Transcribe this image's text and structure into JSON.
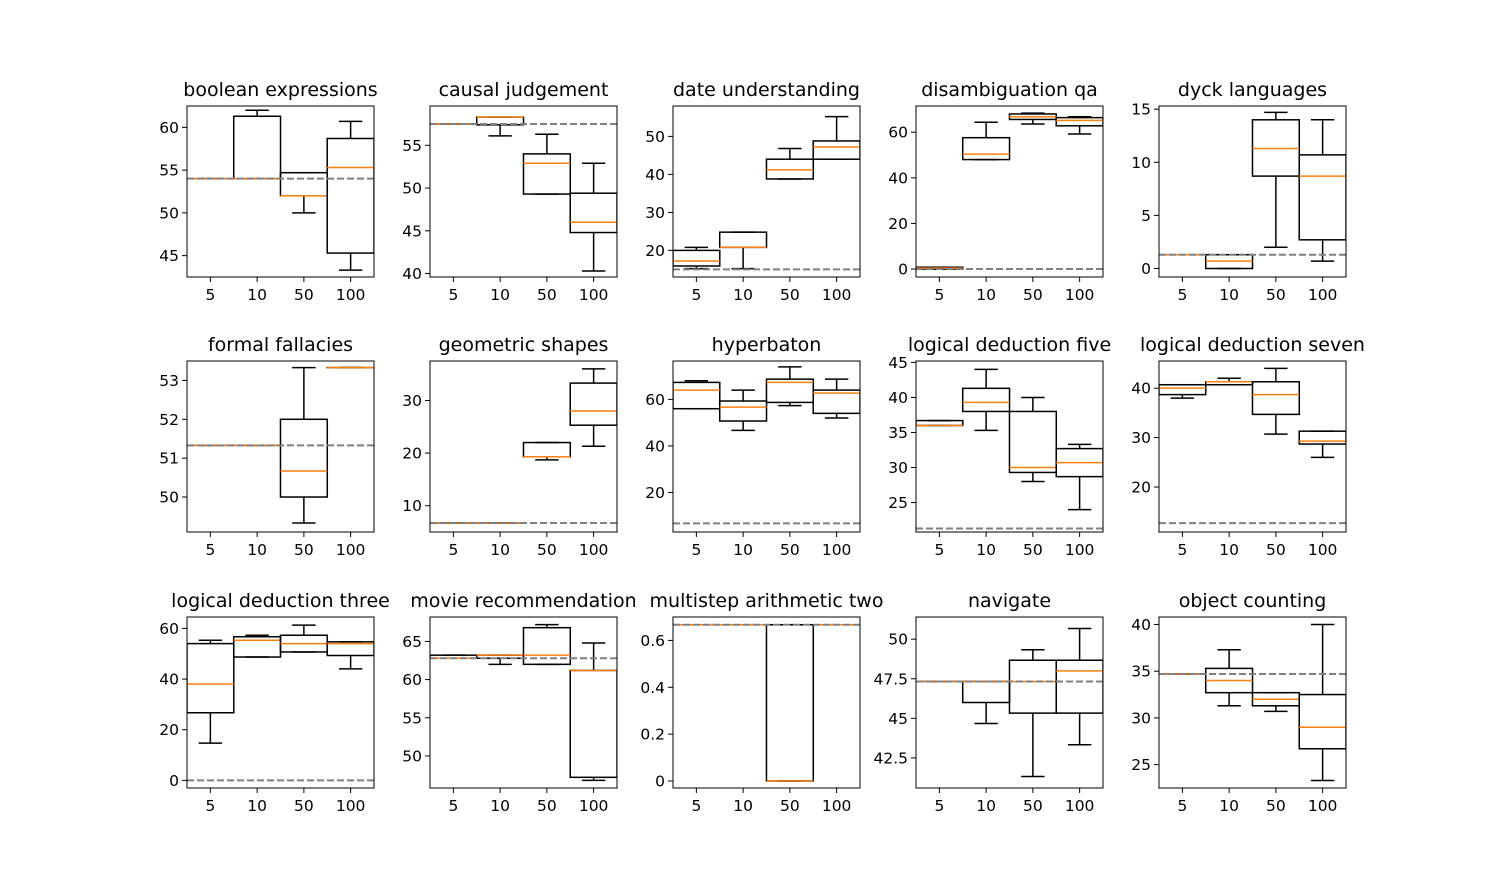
{
  "chart_data": {
    "type": "box",
    "categories": [
      "5",
      "10",
      "50",
      "100"
    ],
    "median_color": "#ff7f0e",
    "box_color": "#000000",
    "baseline_color": "#808080",
    "panels": [
      {
        "title": "boolean expressions",
        "ylim": [
          42.5,
          62.5
        ],
        "yticks": [
          45,
          50,
          55,
          60
        ],
        "baseline": 54.0,
        "boxes": [
          {
            "whislo": 54.0,
            "q1": 54.0,
            "med": 54.0,
            "q3": 54.0,
            "whishi": 54.0
          },
          {
            "whislo": 54.0,
            "q1": 54.0,
            "med": 54.0,
            "q3": 61.3,
            "whishi": 62.0
          },
          {
            "whislo": 50.0,
            "q1": 52.0,
            "med": 52.0,
            "q3": 54.7,
            "whishi": 54.7
          },
          {
            "whislo": 43.3,
            "q1": 45.3,
            "med": 55.3,
            "q3": 58.7,
            "whishi": 60.7
          }
        ]
      },
      {
        "title": "causal judgement",
        "ylim": [
          39.6,
          59.6
        ],
        "yticks": [
          40,
          45,
          50,
          55
        ],
        "baseline": 57.5,
        "boxes": [
          {
            "whislo": 57.5,
            "q1": 57.5,
            "med": 57.5,
            "q3": 57.5,
            "whishi": 57.5
          },
          {
            "whislo": 56.1,
            "q1": 57.4,
            "med": 58.3,
            "q3": 58.3,
            "whishi": 58.3
          },
          {
            "whislo": 49.3,
            "q1": 49.3,
            "med": 52.9,
            "q3": 54.0,
            "whishi": 56.3
          },
          {
            "whislo": 40.3,
            "q1": 44.8,
            "med": 46.0,
            "q3": 49.4,
            "whishi": 52.9
          }
        ]
      },
      {
        "title": "date understanding",
        "ylim": [
          13.0,
          58.0
        ],
        "yticks": [
          20,
          30,
          40,
          50
        ],
        "baseline": 15.0,
        "boxes": [
          {
            "whislo": 15.2,
            "q1": 15.9,
            "med": 17.2,
            "q3": 20.0,
            "whishi": 20.8
          },
          {
            "whislo": 15.2,
            "q1": 20.8,
            "med": 20.8,
            "q3": 24.8,
            "whishi": 24.8
          },
          {
            "whislo": 38.8,
            "q1": 38.8,
            "med": 41.2,
            "q3": 44.0,
            "whishi": 46.8
          },
          {
            "whislo": 44.0,
            "q1": 44.0,
            "med": 47.2,
            "q3": 48.8,
            "whishi": 55.2
          }
        ]
      },
      {
        "title": "disambiguation qa",
        "ylim": [
          -3.5,
          71.5
        ],
        "yticks": [
          0,
          20,
          40,
          60
        ],
        "baseline": 0.0,
        "boxes": [
          {
            "whislo": 0.0,
            "q1": 0.0,
            "med": 0.4,
            "q3": 0.8,
            "whishi": 0.8
          },
          {
            "whislo": 48.0,
            "q1": 48.0,
            "med": 50.4,
            "q3": 57.6,
            "whishi": 64.4
          },
          {
            "whislo": 63.6,
            "q1": 65.6,
            "med": 66.8,
            "q3": 68.0,
            "whishi": 68.4
          },
          {
            "whislo": 59.2,
            "q1": 62.8,
            "med": 65.2,
            "q3": 66.4,
            "whishi": 66.8
          }
        ]
      },
      {
        "title": "dyck languages",
        "ylim": [
          -0.8,
          15.3
        ],
        "yticks": [
          0,
          5,
          10,
          15
        ],
        "baseline": 1.3,
        "boxes": [
          {
            "whislo": 1.3,
            "q1": 1.3,
            "med": 1.3,
            "q3": 1.3,
            "whishi": 1.3
          },
          {
            "whislo": 0.0,
            "q1": 0.0,
            "med": 0.7,
            "q3": 1.3,
            "whishi": 1.3
          },
          {
            "whislo": 2.0,
            "q1": 8.7,
            "med": 11.3,
            "q3": 14.0,
            "whishi": 14.7
          },
          {
            "whislo": 0.7,
            "q1": 2.7,
            "med": 8.7,
            "q3": 10.7,
            "whishi": 14.0
          }
        ]
      },
      {
        "title": "formal fallacies",
        "ylim": [
          49.1,
          53.5
        ],
        "yticks": [
          50,
          51,
          52,
          53
        ],
        "baseline": 51.33,
        "boxes": [
          {
            "whislo": 51.33,
            "q1": 51.33,
            "med": 51.33,
            "q3": 51.33,
            "whishi": 51.33
          },
          {
            "whislo": 51.33,
            "q1": 51.33,
            "med": 51.33,
            "q3": 51.33,
            "whishi": 51.33
          },
          {
            "whislo": 49.33,
            "q1": 50.0,
            "med": 50.67,
            "q3": 52.0,
            "whishi": 53.33
          },
          {
            "whislo": 53.33,
            "q1": 53.33,
            "med": 53.33,
            "q3": 53.33,
            "whishi": 53.33
          }
        ]
      },
      {
        "title": "geometric shapes",
        "ylim": [
          5.0,
          37.5
        ],
        "yticks": [
          10,
          20,
          30
        ],
        "baseline": 6.7,
        "boxes": [
          {
            "whislo": 6.7,
            "q1": 6.7,
            "med": 6.7,
            "q3": 6.7,
            "whishi": 6.7
          },
          {
            "whislo": 6.7,
            "q1": 6.7,
            "med": 6.7,
            "q3": 6.7,
            "whishi": 6.7
          },
          {
            "whislo": 18.7,
            "q1": 19.3,
            "med": 19.3,
            "q3": 22.0,
            "whishi": 22.0
          },
          {
            "whislo": 21.3,
            "q1": 25.3,
            "med": 28.0,
            "q3": 33.3,
            "whishi": 36.0
          }
        ]
      },
      {
        "title": "hyperbaton",
        "ylim": [
          3.0,
          76.5
        ],
        "yticks": [
          20,
          40,
          60
        ],
        "baseline": 6.7,
        "boxes": [
          {
            "whislo": 56.0,
            "q1": 56.0,
            "med": 64.0,
            "q3": 67.3,
            "whishi": 68.0
          },
          {
            "whislo": 46.7,
            "q1": 50.7,
            "med": 56.7,
            "q3": 59.3,
            "whishi": 64.0
          },
          {
            "whislo": 57.3,
            "q1": 58.7,
            "med": 67.3,
            "q3": 68.7,
            "whishi": 74.0
          },
          {
            "whislo": 52.0,
            "q1": 54.0,
            "med": 62.7,
            "q3": 64.0,
            "whishi": 68.7
          }
        ]
      },
      {
        "title": "logical deduction five",
        "ylim": [
          20.8,
          45.2
        ],
        "yticks": [
          25,
          30,
          35,
          40,
          45
        ],
        "baseline": 21.3,
        "boxes": [
          {
            "whislo": 36.0,
            "q1": 36.0,
            "med": 36.0,
            "q3": 36.7,
            "whishi": 36.7
          },
          {
            "whislo": 35.3,
            "q1": 38.0,
            "med": 39.3,
            "q3": 41.3,
            "whishi": 44.0
          },
          {
            "whislo": 28.0,
            "q1": 29.3,
            "med": 30.0,
            "q3": 38.0,
            "whishi": 40.0
          },
          {
            "whislo": 24.0,
            "q1": 28.7,
            "med": 30.7,
            "q3": 32.7,
            "whishi": 33.3
          }
        ]
      },
      {
        "title": "logical deduction seven",
        "ylim": [
          10.9,
          45.5
        ],
        "yticks": [
          20,
          30,
          40
        ],
        "baseline": 12.7,
        "boxes": [
          {
            "whislo": 38.0,
            "q1": 38.7,
            "med": 40.0,
            "q3": 40.7,
            "whishi": 40.7
          },
          {
            "whislo": 40.7,
            "q1": 40.7,
            "med": 41.3,
            "q3": 41.3,
            "whishi": 42.0
          },
          {
            "whislo": 30.7,
            "q1": 34.7,
            "med": 38.7,
            "q3": 41.3,
            "whishi": 44.0
          },
          {
            "whislo": 26.0,
            "q1": 28.7,
            "med": 29.3,
            "q3": 31.3,
            "whishi": 31.3
          }
        ]
      },
      {
        "title": "logical deduction three",
        "ylim": [
          -3.0,
          64.5
        ],
        "yticks": [
          0,
          20,
          40,
          60
        ],
        "baseline": 0.0,
        "boxes": [
          {
            "whislo": 14.7,
            "q1": 26.7,
            "med": 38.0,
            "q3": 54.0,
            "whishi": 55.3
          },
          {
            "whislo": 48.7,
            "q1": 48.7,
            "med": 55.3,
            "q3": 56.7,
            "whishi": 57.3
          },
          {
            "whislo": 50.7,
            "q1": 50.7,
            "med": 54.0,
            "q3": 57.3,
            "whishi": 61.3
          },
          {
            "whislo": 44.0,
            "q1": 49.3,
            "med": 54.0,
            "q3": 54.7,
            "whishi": 54.7
          }
        ]
      },
      {
        "title": "movie recommendation",
        "ylim": [
          45.8,
          68.2
        ],
        "yticks": [
          50,
          55,
          60,
          65
        ],
        "baseline": 62.8,
        "boxes": [
          {
            "whislo": 62.8,
            "q1": 62.8,
            "med": 62.8,
            "q3": 63.2,
            "whishi": 63.2
          },
          {
            "whislo": 62.0,
            "q1": 62.8,
            "med": 63.2,
            "q3": 63.2,
            "whishi": 63.2
          },
          {
            "whislo": 62.0,
            "q1": 62.0,
            "med": 63.2,
            "q3": 66.8,
            "whishi": 67.2
          },
          {
            "whislo": 46.8,
            "q1": 47.2,
            "med": 61.2,
            "q3": 61.2,
            "whishi": 64.8
          }
        ]
      },
      {
        "title": "multistep arithmetic two",
        "ylim": [
          -0.03,
          0.7
        ],
        "yticks": [
          0.0,
          0.2,
          0.4,
          0.6
        ],
        "baseline": 0.667,
        "boxes": [
          {
            "whislo": 0.667,
            "q1": 0.667,
            "med": 0.667,
            "q3": 0.667,
            "whishi": 0.667
          },
          {
            "whislo": 0.667,
            "q1": 0.667,
            "med": 0.667,
            "q3": 0.667,
            "whishi": 0.667
          },
          {
            "whislo": 0.0,
            "q1": 0.0,
            "med": 0.0,
            "q3": 0.667,
            "whishi": 0.667
          },
          {
            "whislo": 0.667,
            "q1": 0.667,
            "med": 0.667,
            "q3": 0.667,
            "whishi": 0.667
          }
        ]
      },
      {
        "title": "navigate",
        "ylim": [
          40.6,
          51.4
        ],
        "yticks": [
          42.5,
          45.0,
          47.5,
          50.0
        ],
        "baseline": 47.33,
        "boxes": [
          {
            "whislo": 47.33,
            "q1": 47.33,
            "med": 47.33,
            "q3": 47.33,
            "whishi": 47.33
          },
          {
            "whislo": 44.67,
            "q1": 46.0,
            "med": 47.33,
            "q3": 47.33,
            "whishi": 47.33
          },
          {
            "whislo": 41.33,
            "q1": 45.33,
            "med": 47.33,
            "q3": 48.67,
            "whishi": 49.33
          },
          {
            "whislo": 43.33,
            "q1": 45.33,
            "med": 48.0,
            "q3": 48.67,
            "whishi": 50.67
          }
        ]
      },
      {
        "title": "object counting",
        "ylim": [
          22.5,
          40.8
        ],
        "yticks": [
          25,
          30,
          35,
          40
        ],
        "baseline": 34.7,
        "boxes": [
          {
            "whislo": 34.7,
            "q1": 34.7,
            "med": 34.7,
            "q3": 34.7,
            "whishi": 34.7
          },
          {
            "whislo": 31.3,
            "q1": 32.7,
            "med": 34.0,
            "q3": 35.3,
            "whishi": 37.3
          },
          {
            "whislo": 30.7,
            "q1": 31.3,
            "med": 32.0,
            "q3": 32.7,
            "whishi": 32.7
          },
          {
            "whislo": 23.3,
            "q1": 26.7,
            "med": 29.0,
            "q3": 32.5,
            "whishi": 40.0
          }
        ]
      }
    ]
  }
}
